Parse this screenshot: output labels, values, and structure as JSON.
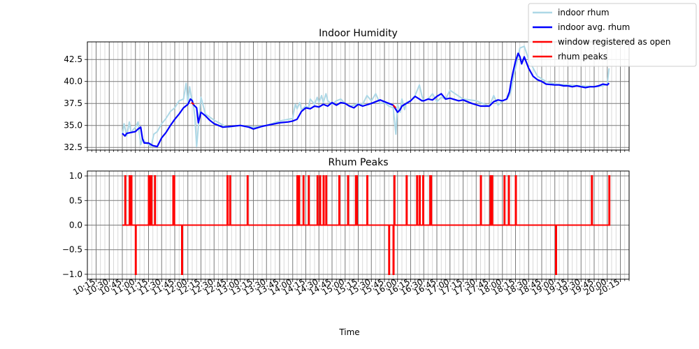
{
  "chart_data": {
    "xlabel": "Time",
    "x_ticks": [
      "10:15",
      "10:30",
      "10:45",
      "11:00",
      "11:15",
      "11:30",
      "11:45",
      "12:00",
      "12:15",
      "12:30",
      "12:45",
      "13:00",
      "13:15",
      "13:30",
      "13:45",
      "14:00",
      "14:15",
      "14:30",
      "14:45",
      "15:00",
      "15:15",
      "15:30",
      "15:45",
      "16:00",
      "16:15",
      "16:30",
      "16:45",
      "17:00",
      "17:15",
      "17:30",
      "17:45",
      "18:00",
      "18:15",
      "18:30",
      "18:45",
      "19:00",
      "19:15",
      "19:30",
      "19:45",
      "20:00",
      "20:15"
    ],
    "x_range_minutes": [
      "10:05",
      "20:25"
    ],
    "legend": {
      "placement": "top-right",
      "entries": [
        {
          "label": "indoor rhum",
          "color": "#add8e6"
        },
        {
          "label": "indoor avg. rhum",
          "color": "#0000ff"
        },
        {
          "label": "window registered as open",
          "color": "#ff0000"
        },
        {
          "label": "rhum peaks",
          "color": "#ff0000"
        }
      ]
    },
    "panels": [
      {
        "type": "line",
        "title": "Indoor Humidity",
        "ylim": [
          32.2,
          44.5
        ],
        "y_ticks": [
          32.5,
          35.0,
          37.5,
          40.0,
          42.5
        ],
        "grid": true,
        "series": [
          {
            "name": "indoor rhum",
            "color": "#add8e6",
            "x": [
              "10:45",
              "10:47",
              "10:50",
              "10:53",
              "10:55",
              "10:58",
              "11:00",
              "11:03",
              "11:06",
              "11:08",
              "11:12",
              "11:15",
              "11:18",
              "11:21",
              "11:25",
              "11:30",
              "11:35",
              "11:40",
              "11:45",
              "11:50",
              "11:55",
              "11:58",
              "12:00",
              "12:02",
              "12:04",
              "12:06",
              "12:08",
              "12:10",
              "12:15",
              "12:20",
              "12:30",
              "12:45",
              "13:00",
              "13:15",
              "13:30",
              "13:45",
              "14:00",
              "14:01",
              "14:03",
              "14:05",
              "14:08",
              "14:10",
              "14:15",
              "14:18",
              "14:20",
              "14:25",
              "14:28",
              "14:30",
              "14:33",
              "14:35",
              "14:38",
              "14:40",
              "14:45",
              "14:50",
              "14:55",
              "15:00",
              "15:05",
              "15:10",
              "15:15",
              "15:20",
              "15:25",
              "15:30",
              "15:35",
              "15:40",
              "15:45",
              "15:50",
              "15:55",
              "15:58",
              "16:00",
              "16:03",
              "16:05",
              "16:08",
              "16:10",
              "16:15",
              "16:20",
              "16:25",
              "16:28",
              "16:30",
              "16:35",
              "16:40",
              "16:45",
              "16:50",
              "16:55",
              "17:00",
              "17:15",
              "17:30",
              "17:45",
              "17:50",
              "17:55",
              "18:00",
              "18:05",
              "18:08",
              "18:10",
              "18:12",
              "18:15",
              "18:20",
              "18:25",
              "18:30",
              "18:40",
              "18:50",
              "19:00",
              "19:15",
              "19:30",
              "19:45",
              "19:55",
              "20:00",
              "20:02"
            ],
            "y": [
              34.0,
              35.2,
              33.8,
              35.4,
              34.2,
              34.6,
              34.8,
              35.4,
              32.8,
              33.5,
              33.0,
              32.8,
              32.6,
              34.0,
              34.3,
              35.2,
              35.8,
              36.6,
              37.0,
              37.8,
              38.0,
              39.8,
              37.5,
              39.4,
              38.2,
              37.6,
              36.0,
              32.6,
              38.2,
              36.3,
              35.6,
              34.8,
              35.0,
              34.8,
              35.0,
              35.5,
              35.8,
              36.4,
              37.4,
              36.9,
              37.6,
              36.8,
              37.2,
              37.0,
              38.0,
              37.4,
              38.2,
              37.6,
              38.4,
              37.6,
              38.6,
              37.8,
              37.4,
              37.8,
              38.0,
              37.5,
              37.2,
              37.3,
              37.5,
              37.4,
              38.4,
              37.8,
              38.6,
              37.5,
              37.6,
              37.2,
              37.0,
              34.0,
              37.4,
              36.5,
              38.0,
              36.8,
              37.6,
              37.8,
              38.4,
              39.6,
              38.3,
              37.8,
              38.0,
              38.6,
              37.7,
              38.2,
              38.0,
              39.0,
              38.0,
              37.8,
              37.2,
              38.4,
              37.3,
              37.8,
              38.0,
              38.4,
              39.0,
              40.2,
              41.5,
              43.8,
              44.0,
              42.5,
              40.6,
              40.0,
              39.7,
              39.6,
              39.5,
              39.4,
              39.5,
              39.7,
              41.5
            ]
          },
          {
            "name": "indoor avg. rhum",
            "color": "#0000ff",
            "x": [
              "10:45",
              "10:48",
              "10:50",
              "10:55",
              "11:00",
              "11:03",
              "11:06",
              "11:08",
              "11:10",
              "11:15",
              "11:20",
              "11:25",
              "11:28",
              "11:30",
              "11:35",
              "11:40",
              "11:45",
              "11:50",
              "11:55",
              "12:00",
              "12:03",
              "12:05",
              "12:06",
              "12:08",
              "12:10",
              "12:12",
              "12:15",
              "12:20",
              "12:25",
              "12:30",
              "12:40",
              "12:50",
              "13:00",
              "13:10",
              "13:15",
              "13:25",
              "13:30",
              "13:45",
              "13:55",
              "14:00",
              "14:05",
              "14:10",
              "14:15",
              "14:20",
              "14:25",
              "14:30",
              "14:35",
              "14:40",
              "14:45",
              "14:50",
              "14:55",
              "15:00",
              "15:05",
              "15:10",
              "15:15",
              "15:20",
              "15:30",
              "15:40",
              "15:45",
              "15:50",
              "15:55",
              "16:00",
              "16:03",
              "16:05",
              "16:10",
              "16:15",
              "16:20",
              "16:25",
              "16:28",
              "16:30",
              "16:35",
              "16:40",
              "16:45",
              "16:50",
              "16:55",
              "17:00",
              "17:10",
              "17:15",
              "17:25",
              "17:35",
              "17:45",
              "17:50",
              "17:55",
              "18:00",
              "18:05",
              "18:08",
              "18:10",
              "18:12",
              "18:15",
              "18:18",
              "18:20",
              "18:22",
              "18:25",
              "18:30",
              "18:35",
              "18:40",
              "18:45",
              "18:50",
              "19:00",
              "19:05",
              "19:10",
              "19:15",
              "19:20",
              "19:25",
              "19:30",
              "19:35",
              "19:40",
              "19:45",
              "19:50",
              "19:55",
              "20:00",
              "20:02"
            ],
            "y": [
              34.1,
              33.8,
              34.1,
              34.2,
              34.3,
              34.6,
              34.8,
              33.5,
              33.0,
              33.0,
              32.7,
              32.6,
              33.2,
              33.6,
              34.2,
              35.0,
              35.7,
              36.3,
              37.0,
              37.4,
              38.0,
              37.8,
              37.4,
              37.2,
              37.0,
              35.3,
              36.5,
              36.1,
              35.6,
              35.2,
              34.8,
              34.9,
              35.0,
              34.8,
              34.6,
              34.9,
              35.0,
              35.3,
              35.4,
              35.5,
              35.7,
              36.6,
              37.0,
              36.9,
              37.2,
              37.1,
              37.4,
              37.2,
              37.6,
              37.3,
              37.6,
              37.5,
              37.2,
              37.0,
              37.4,
              37.2,
              37.5,
              37.9,
              37.7,
              37.5,
              37.3,
              36.5,
              36.8,
              37.2,
              37.5,
              37.8,
              38.3,
              38.0,
              37.8,
              37.8,
              38.0,
              37.9,
              38.3,
              38.6,
              38.0,
              38.1,
              37.8,
              37.9,
              37.5,
              37.2,
              37.2,
              37.7,
              37.9,
              37.8,
              38.0,
              38.8,
              40.0,
              41.0,
              42.3,
              43.2,
              42.8,
              42.0,
              42.8,
              41.5,
              40.6,
              40.2,
              40.0,
              39.7,
              39.6,
              39.6,
              39.5,
              39.5,
              39.4,
              39.5,
              39.4,
              39.3,
              39.4,
              39.4,
              39.5,
              39.7,
              39.6,
              39.8
            ]
          },
          {
            "name": "window registered as open",
            "color": "#ff0000",
            "segments": [
              {
                "x": [
                  "12:04",
                  "12:07"
                ],
                "y": [
                  37.6,
                  37.4
                ]
              },
              {
                "x": [
                  "15:55",
                  "15:58"
                ],
                "y": [
                  37.3,
                  37.0
                ]
              }
            ]
          }
        ]
      },
      {
        "type": "line",
        "title": "Rhum Peaks",
        "ylim": [
          -1.1,
          1.1
        ],
        "y_ticks": [
          1.0,
          0.5,
          0.0,
          -0.5,
          -1.0
        ],
        "y_tick_labels": [
          "1.0",
          "0.5",
          "0.0",
          "−0.5",
          "−1.0"
        ],
        "grid": true,
        "series": [
          {
            "name": "rhum peaks",
            "color": "#ff0000",
            "baseline_range": [
              "10:45",
              "20:02"
            ],
            "positive_peaks": [
              "10:48",
              "10:53",
              "10:55",
              "11:15",
              "11:16",
              "11:18",
              "11:22",
              "11:43",
              "11:44",
              "12:45",
              "12:48",
              "13:08",
              "14:05",
              "14:07",
              "14:12",
              "14:18",
              "14:28",
              "14:31",
              "14:35",
              "14:38",
              "14:53",
              "15:03",
              "15:12",
              "15:13",
              "15:25",
              "15:56",
              "16:10",
              "16:22",
              "16:25",
              "16:29",
              "16:37",
              "16:38",
              "17:35",
              "17:46",
              "17:48",
              "18:02",
              "18:07",
              "18:15",
              "19:42",
              "20:02"
            ],
            "negative_peaks": [
              "11:00",
              "11:53",
              "15:50",
              "15:55",
              "19:01"
            ]
          }
        ]
      }
    ]
  }
}
